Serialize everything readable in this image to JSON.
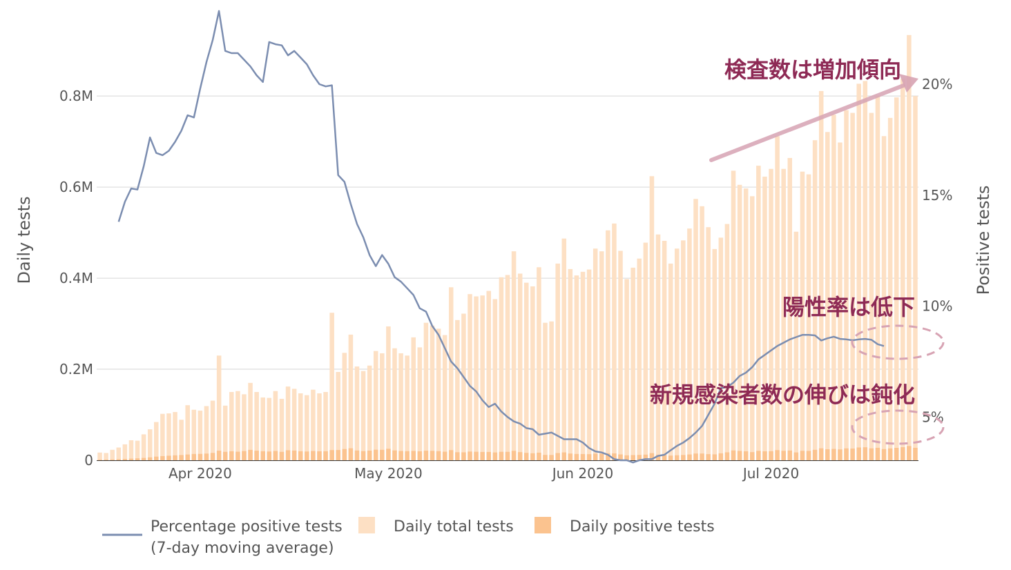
{
  "chart_data": {
    "type": "bar",
    "x_start": "2020-03-16",
    "x_ticks": [
      "Apr 2020",
      "May 2020",
      "Jun 2020",
      "Jul 2020"
    ],
    "ylabel_left": "Daily tests",
    "ylabel_right": "Positive tests",
    "y_left_ticks": [
      "0",
      "0.2M",
      "0.4M",
      "0.6M",
      "0.8M"
    ],
    "y_right_ticks": [
      "5%",
      "10%",
      "15%",
      "20%"
    ],
    "y_left_range": [
      0,
      920000
    ],
    "y_right_range": [
      3.05,
      20.0
    ],
    "grid": true,
    "legend_placement": "bottom-left",
    "series": [
      {
        "name": "Daily total tests",
        "kind": "bar",
        "color": "#fde0c4",
        "values": [
          17000,
          16000,
          23000,
          28000,
          35000,
          44000,
          43000,
          57000,
          68000,
          84000,
          102000,
          103000,
          106000,
          89000,
          121000,
          111000,
          109000,
          119000,
          131000,
          230000,
          120000,
          150000,
          152000,
          145000,
          170000,
          150000,
          138000,
          137000,
          152000,
          135000,
          162000,
          157000,
          147000,
          143000,
          155000,
          147000,
          150000,
          324000,
          194000,
          236000,
          276000,
          206000,
          196000,
          208000,
          240000,
          235000,
          294000,
          246000,
          235000,
          230000,
          270000,
          248000,
          302000,
          296000,
          289000,
          275000,
          380000,
          308000,
          322000,
          365000,
          360000,
          362000,
          372000,
          354000,
          402000,
          407000,
          459000,
          410000,
          390000,
          382000,
          424000,
          302000,
          305000,
          432000,
          487000,
          420000,
          406000,
          414000,
          419000,
          465000,
          459000,
          505000,
          520000,
          460000,
          398000,
          423000,
          443000,
          478000,
          624000,
          496000,
          482000,
          432000,
          465000,
          483000,
          509000,
          574000,
          558000,
          512000,
          464000,
          489000,
          519000,
          636000,
          605000,
          597000,
          580000,
          647000,
          623000,
          640000,
          712000,
          640000,
          664000,
          502000,
          634000,
          628000,
          703000,
          811000,
          721000,
          759000,
          698000,
          769000,
          763000,
          827000,
          833000,
          763000,
          801000,
          712000,
          752000,
          797000,
          838000,
          934000,
          800000
        ]
      },
      {
        "name": "Daily positive tests",
        "kind": "bar",
        "color": "#fbc38f",
        "values": [
          1200,
          1400,
          1800,
          2300,
          2900,
          3600,
          4300,
          5200,
          6400,
          8000,
          9200,
          10000,
          10800,
          11500,
          12700,
          13800,
          14000,
          14700,
          16200,
          21000,
          18500,
          19800,
          18800,
          20200,
          22900,
          21000,
          19800,
          19200,
          20400,
          18500,
          22000,
          21300,
          19800,
          19300,
          20300,
          19700,
          19800,
          22400,
          22600,
          24700,
          26400,
          21400,
          20100,
          21200,
          23200,
          23000,
          25300,
          21600,
          20400,
          19900,
          20500,
          19700,
          21000,
          20700,
          20000,
          18800,
          22300,
          17700,
          17500,
          19100,
          18700,
          18300,
          18300,
          17200,
          18600,
          18500,
          20800,
          17900,
          16300,
          15400,
          16700,
          11800,
          11600,
          15900,
          17300,
          14800,
          13800,
          13700,
          13400,
          14500,
          14300,
          15300,
          15100,
          12900,
          10800,
          11400,
          11800,
          12400,
          15600,
          12200,
          11800,
          10300,
          11000,
          11600,
          12800,
          14800,
          14800,
          13500,
          13000,
          15300,
          17500,
          21600,
          20500,
          19700,
          18000,
          20700,
          19700,
          19900,
          22300,
          20800,
          21400,
          17300,
          20800,
          20500,
          23000,
          26300,
          24300,
          24900,
          23900,
          26100,
          25800,
          28100,
          28600,
          26200,
          27400,
          24600,
          26000,
          27300,
          28700,
          31300,
          27400
        ]
      },
      {
        "name": "Percentage positive tests (7-day moving average)",
        "kind": "line",
        "axis": "right",
        "color": "#7b8db0",
        "start_index": 3,
        "values": [
          13.8,
          14.7,
          15.3,
          15.25,
          16.3,
          17.6,
          16.9,
          16.8,
          17.0,
          17.4,
          17.9,
          18.6,
          18.5,
          19.8,
          21.0,
          22.0,
          23.3,
          21.5,
          21.4,
          21.4,
          21.1,
          20.8,
          20.4,
          20.1,
          21.9,
          21.8,
          21.75,
          21.3,
          21.5,
          21.2,
          20.9,
          20.4,
          20.0,
          19.9,
          19.95,
          15.9,
          15.6,
          14.6,
          13.7,
          13.1,
          12.3,
          11.8,
          12.3,
          11.9,
          11.3,
          11.1,
          10.8,
          10.5,
          9.9,
          9.75,
          9.1,
          8.7,
          8.1,
          7.5,
          7.2,
          6.8,
          6.4,
          6.15,
          5.75,
          5.45,
          5.6,
          5.25,
          5.0,
          4.8,
          4.7,
          4.5,
          4.45,
          4.2,
          4.25,
          4.3,
          4.15,
          4.0,
          4.0,
          4.0,
          3.85,
          3.6,
          3.45,
          3.4,
          3.3,
          3.1,
          3.05,
          3.05,
          2.95,
          3.05,
          3.1,
          3.1,
          3.25,
          3.3,
          3.5,
          3.7,
          3.85,
          4.05,
          4.3,
          4.6,
          5.1,
          5.6,
          6.3,
          6.35,
          6.55,
          6.85,
          7.0,
          7.25,
          7.6,
          7.8,
          8.0,
          8.2,
          8.35,
          8.5,
          8.6,
          8.7,
          8.7,
          8.68,
          8.45,
          8.55,
          8.62,
          8.52,
          8.5,
          8.46,
          8.5,
          8.52,
          8.48,
          8.28,
          8.2
        ]
      }
    ],
    "annotations": {
      "tests_increase": "検査数は増加傾向",
      "positivity_down": "陽性率は低下",
      "new_cases_slowing": "新規感染者数の伸びは鈍化"
    }
  },
  "legend": {
    "line_label_1": "Percentage positive tests",
    "line_label_2": "(7-day moving average)",
    "total_label": "Daily total tests",
    "positive_label": "Daily positive tests"
  }
}
